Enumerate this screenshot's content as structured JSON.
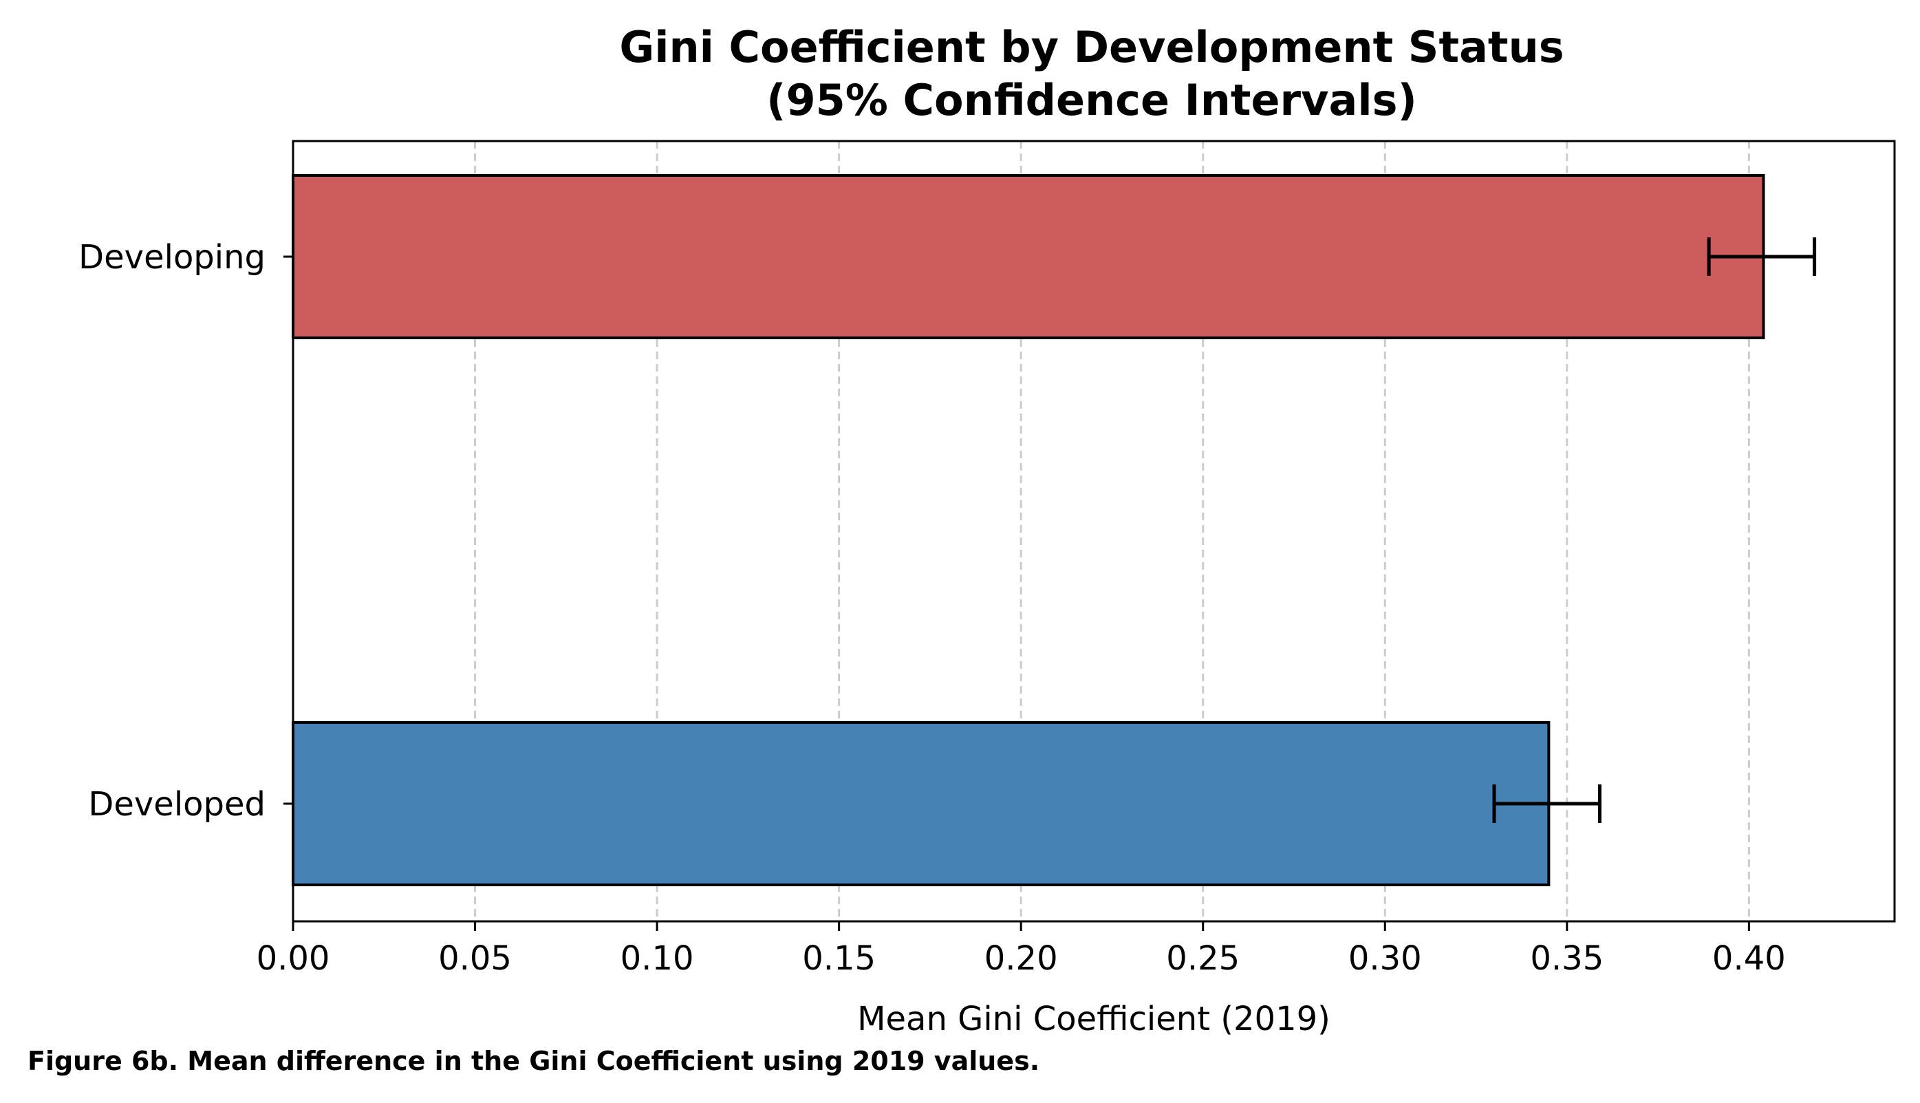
{
  "chart_data": {
    "type": "bar",
    "orientation": "horizontal",
    "title": "Gini Coefficient by Development Status",
    "subtitle": "(95% Confidence Intervals)",
    "xlabel": "Mean Gini Coefficient (2019)",
    "ylabel": "",
    "xlim": [
      0,
      0.44
    ],
    "x_ticks": [
      "0.00",
      "0.05",
      "0.10",
      "0.15",
      "0.20",
      "0.25",
      "0.30",
      "0.35",
      "0.40"
    ],
    "grid": "vertical dashed",
    "categories": [
      "Developing",
      "Developed"
    ],
    "values": [
      0.404,
      0.345
    ],
    "ci_lower": [
      0.389,
      0.33
    ],
    "ci_upper": [
      0.418,
      0.359
    ],
    "colors": [
      "#cd5c5c",
      "#4682b4"
    ]
  },
  "caption": "Figure 6b. Mean difference in the Gini Coefficient using 2019 values."
}
